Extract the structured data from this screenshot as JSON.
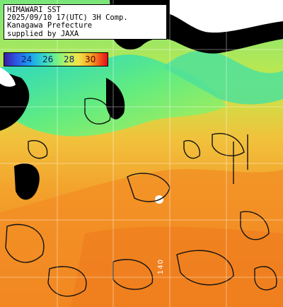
{
  "title_block": {
    "line1": "HIMAWARI SST",
    "line2": "2025/09/10 17(UTC) 3H Comp.",
    "line3": "Kanagawa Prefecture",
    "line4": "supplied by JAXA"
  },
  "legend": {
    "ticks": [
      "24",
      "26",
      "28",
      "30"
    ],
    "colors": {
      "min": "#3a1d9e",
      "mid": "#6ff08a",
      "high": "#f5a623",
      "max": "#e0101a"
    }
  },
  "map": {
    "longitude_label": "140",
    "colors": {
      "land": "#000000",
      "cloud": "#ffffff",
      "cool_water": "#6ff08a",
      "warm_water": "#f29a2a",
      "grid": "#ffffff"
    }
  }
}
